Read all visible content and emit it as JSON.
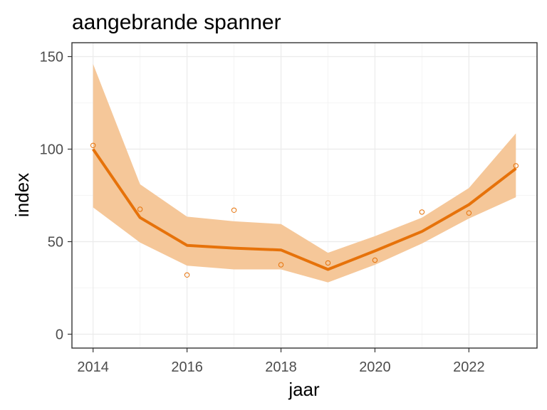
{
  "chart_data": {
    "type": "line",
    "title": "aangebrande spanner",
    "xlabel": "jaar",
    "ylabel": "index",
    "xlim": [
      2013.55,
      2023.45
    ],
    "ylim": [
      -7.5,
      157.5
    ],
    "x_ticks": [
      2014,
      2016,
      2018,
      2020,
      2022
    ],
    "y_ticks": [
      0,
      50,
      100,
      150
    ],
    "x_tick_labels": [
      "2014",
      "2016",
      "2018",
      "2020",
      "2022"
    ],
    "y_tick_labels": [
      "0",
      "50",
      "100",
      "150"
    ],
    "grid": true,
    "legend": "none",
    "series": [
      {
        "type": "ribbon",
        "x": [
          2014,
          2015,
          2016,
          2017,
          2018,
          2019,
          2020,
          2021,
          2022,
          2023
        ],
        "lower": [
          68.5,
          49.5,
          37,
          35,
          35,
          28,
          37.5,
          49,
          62.5,
          74
        ],
        "upper": [
          146,
          81,
          63.5,
          61,
          59.5,
          44,
          53,
          63,
          79,
          108.5
        ],
        "color": "#f5c799"
      },
      {
        "type": "line",
        "x": [
          2014,
          2015,
          2016,
          2017,
          2018,
          2019,
          2020,
          2021,
          2022,
          2023
        ],
        "y": [
          100,
          63,
          48,
          46.5,
          45.5,
          35,
          45,
          55.5,
          70,
          89.5
        ],
        "color": "#e6720a"
      },
      {
        "type": "scatter",
        "x": [
          2014,
          2015,
          2016,
          2017,
          2018,
          2019,
          2020,
          2021,
          2022,
          2023
        ],
        "y": [
          102,
          67.5,
          32,
          67,
          37.5,
          38.5,
          40,
          66,
          65.5,
          91
        ],
        "color": "#e6720a"
      }
    ]
  }
}
